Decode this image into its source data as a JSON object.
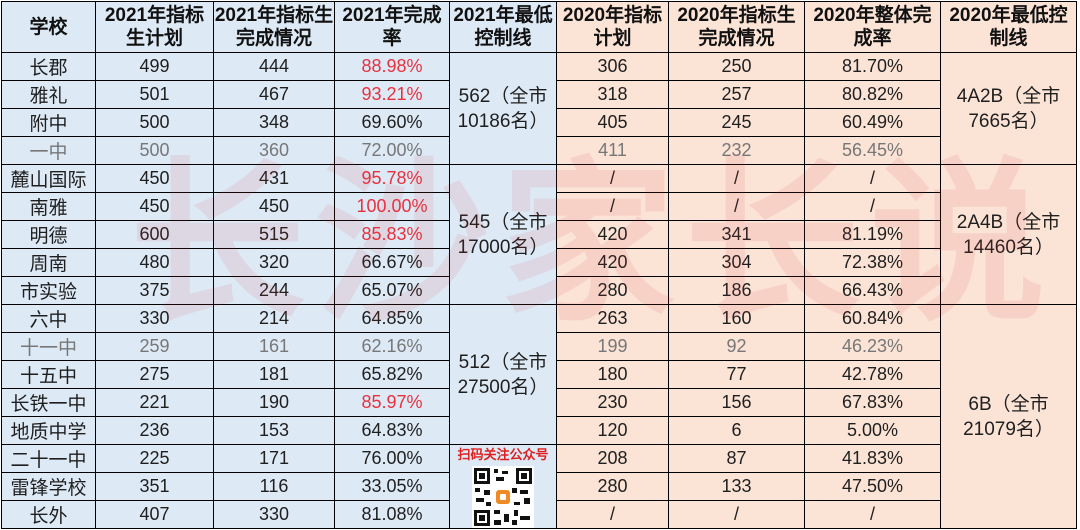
{
  "headers": [
    "学校",
    "2021年指标生计划",
    "2021年指标生完成情况",
    "2021年完成率",
    "2021年最低控制线",
    "2020年指标计划",
    "2020年指标生完成情况",
    "2020年整体完成率",
    "2020年最低控制线"
  ],
  "rows": [
    {
      "school": "长郡",
      "plan21": "499",
      "done21": "444",
      "rate21": "88.98%",
      "plan20": "306",
      "done20": "250",
      "rate20": "81.70%"
    },
    {
      "school": "雅礼",
      "plan21": "501",
      "done21": "467",
      "rate21": "93.21%",
      "plan20": "318",
      "done20": "257",
      "rate20": "80.82%"
    },
    {
      "school": "附中",
      "plan21": "500",
      "done21": "348",
      "rate21": "69.60%",
      "plan20": "405",
      "done20": "245",
      "rate20": "60.49%"
    },
    {
      "school": "一中",
      "plan21": "500",
      "done21": "360",
      "rate21": "72.00%",
      "plan20": "411",
      "done20": "232",
      "rate20": "56.45%"
    },
    {
      "school": "麓山国际",
      "plan21": "450",
      "done21": "431",
      "rate21": "95.78%",
      "plan20": "/",
      "done20": "/",
      "rate20": "/"
    },
    {
      "school": "南雅",
      "plan21": "450",
      "done21": "450",
      "rate21": "100.00%",
      "plan20": "/",
      "done20": "/",
      "rate20": "/"
    },
    {
      "school": "明德",
      "plan21": "600",
      "done21": "515",
      "rate21": "85.83%",
      "plan20": "420",
      "done20": "341",
      "rate20": "81.19%"
    },
    {
      "school": "周南",
      "plan21": "480",
      "done21": "320",
      "rate21": "66.67%",
      "plan20": "420",
      "done20": "304",
      "rate20": "72.38%"
    },
    {
      "school": "市实验",
      "plan21": "375",
      "done21": "244",
      "rate21": "65.07%",
      "plan20": "280",
      "done20": "186",
      "rate20": "66.43%"
    },
    {
      "school": "六中",
      "plan21": "330",
      "done21": "214",
      "rate21": "64.85%",
      "plan20": "263",
      "done20": "160",
      "rate20": "60.84%"
    },
    {
      "school": "十一中",
      "plan21": "259",
      "done21": "161",
      "rate21": "62.16%",
      "plan20": "199",
      "done20": "92",
      "rate20": "46.23%"
    },
    {
      "school": "十五中",
      "plan21": "275",
      "done21": "181",
      "rate21": "65.82%",
      "plan20": "180",
      "done20": "77",
      "rate20": "42.78%"
    },
    {
      "school": "长铁一中",
      "plan21": "221",
      "done21": "190",
      "rate21": "85.97%",
      "plan20": "230",
      "done20": "156",
      "rate20": "67.83%"
    },
    {
      "school": "地质中学",
      "plan21": "236",
      "done21": "153",
      "rate21": "64.83%",
      "plan20": "120",
      "done20": "6",
      "rate20": "5.00%"
    },
    {
      "school": "二十一中",
      "plan21": "225",
      "done21": "171",
      "rate21": "76.00%",
      "plan20": "208",
      "done20": "87",
      "rate20": "41.83%"
    },
    {
      "school": "雷锋学校",
      "plan21": "351",
      "done21": "116",
      "rate21": "33.05%",
      "plan20": "280",
      "done20": "133",
      "rate20": "47.50%"
    },
    {
      "school": "长外",
      "plan21": "407",
      "done21": "330",
      "rate21": "81.08%",
      "plan20": "/",
      "done20": "/",
      "rate20": "/"
    }
  ],
  "control21": [
    {
      "line1": "562（全市",
      "line2": "10186名）"
    },
    {
      "line1": "545（全市",
      "line2": "17000名）"
    },
    {
      "line1": "512（全市",
      "line2": "27500名）"
    }
  ],
  "control20": [
    {
      "line1": "4A2B（全市",
      "line2": "7665名）"
    },
    {
      "line1": "2A4B（全市",
      "line2": "14460名）"
    },
    {
      "line1": "6B（全市",
      "line2": "21079名）"
    }
  ],
  "qr_label": "扫码关注公众号",
  "watermark": "长沙家长说",
  "colors": {
    "highlight_red": "#e8313f",
    "blue_bg": "#dde9f5",
    "peach_bg": "#fbe3d6",
    "watermark": "#dc3c3c"
  }
}
